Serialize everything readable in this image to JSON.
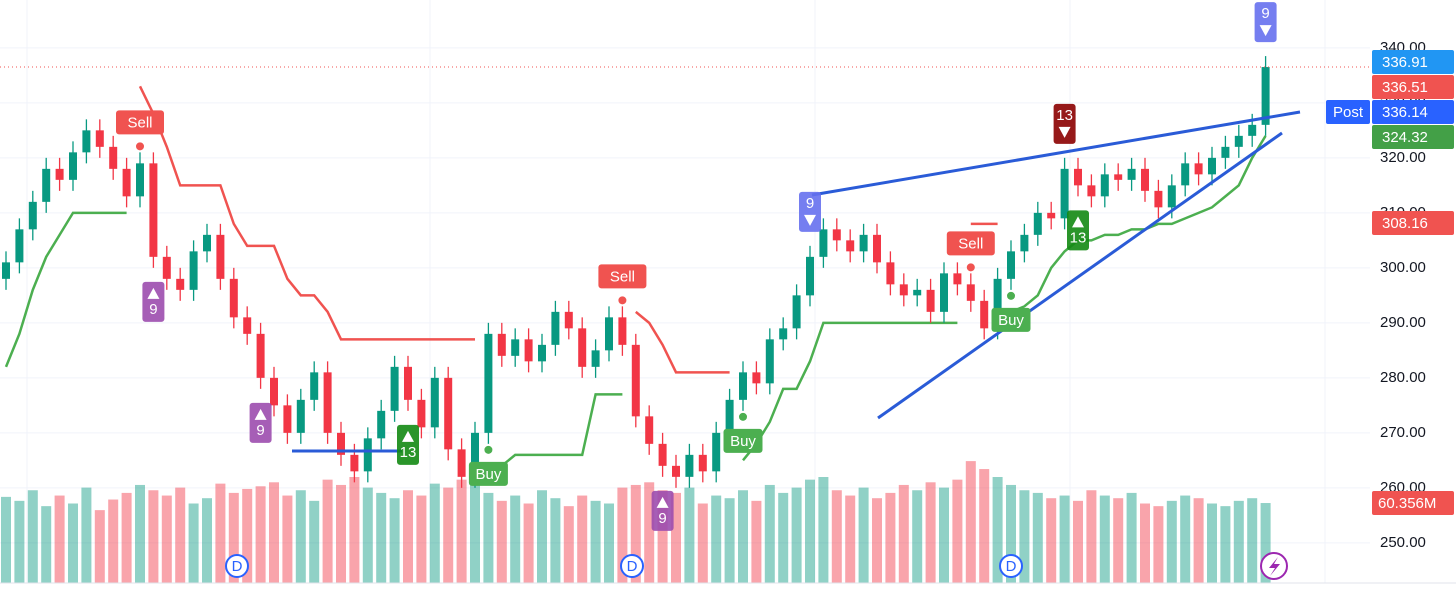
{
  "chart_data": {
    "type": "candlestick",
    "up_color": "#089981",
    "down_color": "#f23645",
    "ylim": [
      242.7,
      348.7
    ],
    "yticks": [
      {
        "value": 250,
        "label": "250.00"
      },
      {
        "value": 260,
        "label": "260.00"
      },
      {
        "value": 270,
        "label": "270.00"
      },
      {
        "value": 280,
        "label": "280.00"
      },
      {
        "value": 290,
        "label": "290.00"
      },
      {
        "value": 300,
        "label": "300.00"
      },
      {
        "value": 310,
        "label": "310.00"
      },
      {
        "value": 320,
        "label": "320.00"
      },
      {
        "value": 330,
        "label": "330.00"
      },
      {
        "value": 340,
        "label": "340.00"
      }
    ],
    "grid": true,
    "open": [
      298,
      301,
      307,
      312,
      318,
      316,
      321,
      325,
      322,
      318,
      313,
      319,
      302,
      298,
      296,
      303,
      306,
      298,
      291,
      288,
      280,
      275,
      270,
      276,
      281,
      270,
      266,
      263,
      269,
      274,
      282,
      276,
      271,
      280,
      267,
      262,
      270,
      288,
      284,
      287,
      283,
      286,
      292,
      289,
      282,
      285,
      291,
      286,
      273,
      268,
      264,
      262,
      266,
      263,
      270,
      276,
      281,
      279,
      287,
      289,
      295,
      302,
      307,
      305,
      303,
      306,
      301,
      297,
      295,
      296,
      292,
      299,
      297,
      294,
      289,
      298,
      303,
      306,
      310,
      309,
      318,
      315,
      313,
      317,
      316,
      318,
      314,
      311,
      315,
      319,
      317,
      320,
      322,
      324,
      326
    ],
    "high": [
      303,
      309,
      314,
      320,
      320,
      323,
      327,
      327,
      324,
      320,
      321,
      321,
      304,
      300,
      305,
      308,
      308,
      300,
      293,
      290,
      282,
      277,
      278,
      283,
      283,
      272,
      268,
      271,
      276,
      284,
      284,
      278,
      282,
      282,
      269,
      272,
      290,
      290,
      289,
      289,
      288,
      294,
      294,
      291,
      287,
      293,
      293,
      288,
      275,
      270,
      266,
      268,
      268,
      272,
      278,
      283,
      283,
      289,
      291,
      297,
      304,
      309,
      309,
      307,
      308,
      308,
      303,
      299,
      298,
      298,
      301,
      301,
      299,
      296,
      300,
      305,
      308,
      312,
      312,
      320,
      320,
      317,
      319,
      319,
      320,
      320,
      316,
      317,
      321,
      321,
      322,
      324,
      326,
      328,
      338.5
    ],
    "low": [
      296,
      299,
      305,
      310,
      314,
      314,
      319,
      320,
      316,
      311,
      311,
      300,
      296,
      294,
      294,
      301,
      296,
      289,
      286,
      278,
      273,
      268,
      268,
      274,
      268,
      264,
      261,
      261,
      267,
      272,
      274,
      269,
      269,
      265,
      260,
      260,
      268,
      282,
      282,
      281,
      281,
      284,
      287,
      280,
      280,
      283,
      284,
      271,
      266,
      262,
      260,
      260,
      261,
      261,
      268,
      274,
      277,
      277,
      285,
      287,
      293,
      300,
      303,
      301,
      301,
      299,
      295,
      293,
      293,
      290,
      290,
      295,
      292,
      287,
      287,
      296,
      301,
      304,
      307,
      307,
      313,
      311,
      311,
      314,
      314,
      312,
      309,
      309,
      313,
      315,
      315,
      318,
      320,
      322,
      324
    ],
    "close": [
      301,
      307,
      312,
      318,
      316,
      321,
      325,
      322,
      318,
      313,
      319,
      302,
      298,
      296,
      303,
      306,
      298,
      291,
      288,
      280,
      275,
      270,
      276,
      281,
      270,
      266,
      263,
      269,
      274,
      282,
      276,
      271,
      280,
      267,
      262,
      270,
      288,
      284,
      287,
      283,
      286,
      292,
      289,
      282,
      285,
      291,
      286,
      273,
      268,
      264,
      262,
      266,
      263,
      270,
      276,
      281,
      279,
      287,
      289,
      295,
      302,
      307,
      305,
      303,
      306,
      301,
      297,
      295,
      296,
      292,
      299,
      297,
      294,
      289,
      298,
      303,
      306,
      310,
      309,
      318,
      315,
      313,
      317,
      316,
      318,
      314,
      311,
      315,
      319,
      317,
      320,
      322,
      324,
      326,
      336.51
    ],
    "volume": [
      65,
      62,
      70,
      58,
      66,
      60,
      72,
      55,
      63,
      68,
      74,
      70,
      66,
      72,
      60,
      64,
      75,
      68,
      71,
      73,
      76,
      66,
      70,
      62,
      78,
      74,
      80,
      72,
      68,
      64,
      70,
      66,
      75,
      72,
      78,
      80,
      68,
      62,
      66,
      60,
      70,
      64,
      58,
      66,
      62,
      60,
      72,
      74,
      76,
      70,
      68,
      72,
      60,
      66,
      64,
      70,
      62,
      74,
      68,
      72,
      78,
      80,
      70,
      66,
      72,
      64,
      68,
      74,
      70,
      76,
      72,
      78,
      92,
      86,
      80,
      74,
      70,
      68,
      64,
      66,
      62,
      70,
      66,
      64,
      68,
      60,
      58,
      62,
      66,
      64,
      60,
      58,
      62,
      64,
      60.356
    ],
    "volume_label": {
      "value": 60.356,
      "label": "60.356M",
      "color": "#f05350"
    },
    "supertrend": [
      {
        "color": "#4caf50",
        "values": [
          282,
          288,
          296,
          302,
          306,
          310,
          310,
          310,
          310,
          310,
          null,
          null,
          null,
          null,
          null,
          null,
          null,
          null,
          null,
          null,
          null,
          null,
          null,
          null,
          null,
          null,
          null,
          null,
          null,
          null,
          null,
          null,
          null,
          null,
          null,
          null,
          262,
          264,
          266,
          266,
          266,
          266,
          266,
          266,
          277,
          277,
          277,
          null,
          null,
          null,
          null,
          null,
          null,
          null,
          null,
          265,
          268,
          272,
          278,
          278,
          283,
          290,
          290,
          290,
          290,
          290,
          290,
          290,
          290,
          290,
          290,
          290,
          null,
          null,
          null,
          292,
          293,
          295,
          300,
          303,
          305,
          305,
          306,
          306,
          307,
          307,
          308,
          308,
          309,
          310,
          311,
          313,
          315,
          320,
          324
        ]
      },
      {
        "color": "#f05350",
        "values": [
          null,
          null,
          null,
          null,
          null,
          null,
          null,
          null,
          null,
          null,
          333,
          328,
          322,
          315,
          315,
          315,
          315,
          308,
          304,
          304,
          304,
          298,
          295,
          295,
          292,
          287,
          287,
          287,
          287,
          287,
          287,
          287,
          287,
          287,
          287,
          287,
          null,
          null,
          null,
          null,
          null,
          null,
          null,
          null,
          null,
          null,
          null,
          292,
          290,
          286,
          281,
          281,
          281,
          281,
          281,
          null,
          null,
          null,
          null,
          null,
          null,
          null,
          null,
          null,
          null,
          null,
          null,
          null,
          null,
          null,
          null,
          null,
          308,
          308,
          308,
          null,
          null,
          null,
          null,
          null,
          null,
          null,
          null,
          null,
          null,
          null,
          null,
          null,
          null,
          null,
          null,
          null,
          null,
          null,
          null,
          null
        ]
      }
    ],
    "signals": [
      {
        "text": "Sell",
        "candle": 10,
        "position": "above",
        "color": "#f05350"
      },
      {
        "text": "Sell",
        "candle": 46,
        "position": "above",
        "color": "#f05350"
      },
      {
        "text": "Sell",
        "candle": 72,
        "position": "above",
        "color": "#f05350"
      },
      {
        "text": "Buy",
        "candle": 36,
        "position": "below",
        "color": "#4caf50"
      },
      {
        "text": "Buy",
        "candle": 55,
        "position": "below",
        "color": "#4caf50"
      },
      {
        "text": "Buy",
        "candle": 75,
        "position": "below",
        "color": "#4caf50"
      },
      {
        "text": "9",
        "candle": 11,
        "position": "below",
        "color": "#9c4dae"
      },
      {
        "text": "9",
        "candle": 19,
        "position": "below",
        "color": "#9c4dae"
      },
      {
        "text": "9",
        "candle": 49,
        "position": "below",
        "color": "#9c4dae"
      },
      {
        "text": "13",
        "candle": 30,
        "position": "below",
        "color": "#138a13"
      },
      {
        "text": "13",
        "candle": 80,
        "position": "below",
        "color": "#138a13"
      },
      {
        "text": "13",
        "candle": 79,
        "position": "above",
        "color": "#8b0000"
      },
      {
        "text": "9",
        "candle": 60,
        "position": "above",
        "color": "#6670ee"
      },
      {
        "text": "9",
        "candle": 94,
        "position": "above",
        "color": "#6670ee"
      }
    ],
    "price_labels": [
      {
        "value": 336.91,
        "color": "#2196f3"
      },
      {
        "value": 336.51,
        "color": "#f05350"
      },
      {
        "value": 336.14,
        "color": "#2962ff",
        "tag": "Post"
      },
      {
        "value": 324.32,
        "color": "#43a047"
      },
      {
        "value": 308.16,
        "color": "#f05350"
      }
    ],
    "events": [
      "D",
      "D",
      "D"
    ]
  }
}
